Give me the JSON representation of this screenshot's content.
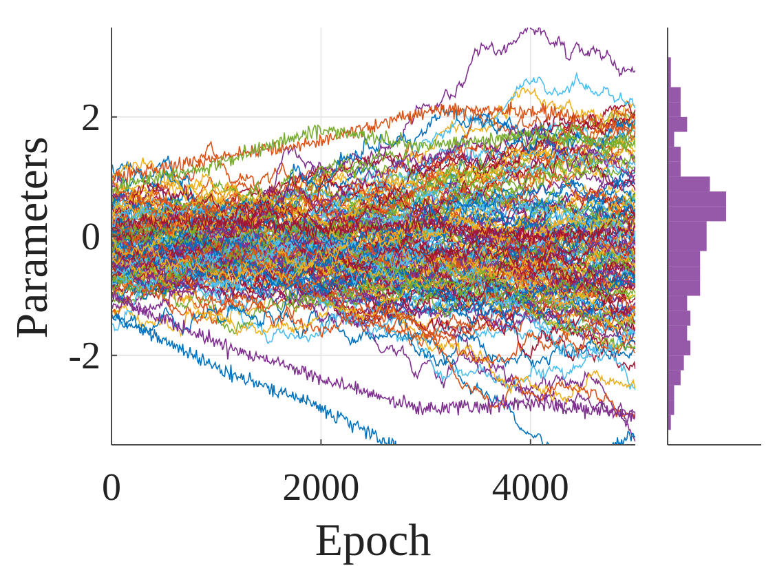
{
  "chart_data": [
    {
      "type": "line",
      "xlabel": "Epoch",
      "ylabel": "Parameters",
      "xlim": [
        0,
        5000
      ],
      "ylim": [
        -3.5,
        3.5
      ],
      "xticks": [
        0,
        2000,
        4000
      ],
      "xtick_labels": [
        "0",
        "2000",
        "4000"
      ],
      "yticks": [
        -2,
        0,
        2
      ],
      "ytick_labels": [
        "-2",
        "0",
        "2"
      ],
      "grid": true,
      "legend": "none",
      "description_of_series": "Random-walk trajectories of many parameters over 5000 epochs (approx. 150 series), spreading from roughly [-1.5, 1.2] at epoch 0 to roughly [-3.2, 2.2] at epoch 5000",
      "series_count": 150,
      "series_sample": [
        {
          "x": [
            0,
            1000,
            2000,
            3000,
            4000,
            5000
          ],
          "values": [
            1.0,
            1.3,
            1.6,
            2.1,
            2.1,
            1.8
          ]
        },
        {
          "x": [
            0,
            1000,
            2000,
            3000,
            4000,
            5000
          ],
          "values": [
            0.8,
            1.2,
            1.8,
            1.5,
            1.7,
            1.5
          ]
        },
        {
          "x": [
            0,
            1000,
            2000,
            3000,
            4000,
            5000
          ],
          "values": [
            -1.3,
            -2.2,
            -2.9,
            -3.8,
            -4.4,
            -3.3
          ]
        },
        {
          "x": [
            0,
            1000,
            2000,
            3000,
            4000,
            5000
          ],
          "values": [
            -1.0,
            -1.8,
            -2.4,
            -2.9,
            -2.8,
            -3.0
          ]
        },
        {
          "x": [
            0,
            1000,
            2000,
            3000,
            4000,
            5000
          ],
          "values": [
            0.2,
            0.3,
            0.1,
            0.2,
            0.0,
            0.1
          ]
        }
      ],
      "colors": [
        "#0072BD",
        "#D95319",
        "#EDB120",
        "#7E2F8E",
        "#77AC30",
        "#4DBEEE",
        "#A2142F"
      ]
    },
    {
      "type": "bar",
      "orientation": "horizontal",
      "xlabel": "",
      "ylabel": "",
      "ylim": [
        -3.5,
        3.5
      ],
      "bin_width": 0.25,
      "bin_edges_start": -3.25,
      "counts": [
        1,
        2,
        2,
        4,
        5,
        7,
        6,
        7,
        6,
        10,
        10,
        10,
        12,
        12,
        18,
        18,
        13,
        4,
        4,
        2,
        6,
        4,
        4,
        1,
        1
      ],
      "color": "#9659A9"
    }
  ]
}
